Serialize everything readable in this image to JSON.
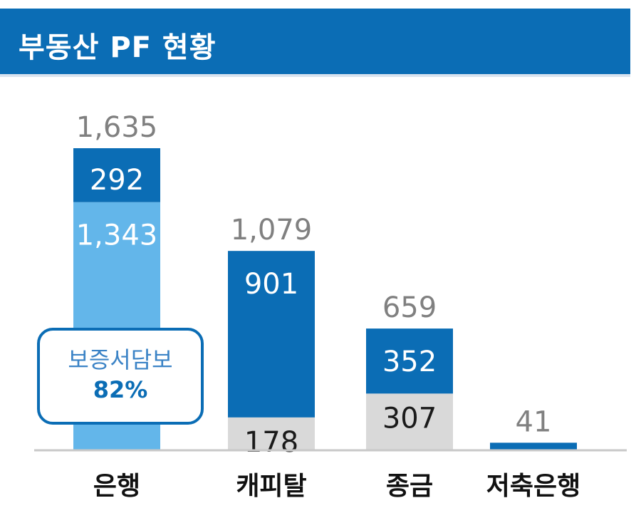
{
  "title": "부동산 PF 현황",
  "callout": {
    "label": "보증서담보",
    "value": "82%"
  },
  "colors": {
    "header": "#0b6db5",
    "dark_segment": "#0b6db5",
    "light_blue_segment": "#63b6ea",
    "gray_segment": "#d9d9d9",
    "total_label": "#808080"
  },
  "chart_data": {
    "type": "bar",
    "stacked": true,
    "title": "부동산 PF 현황",
    "categories": [
      "은행",
      "캐피탈",
      "종금",
      "저축은행"
    ],
    "totals": [
      "1,635",
      "1,079",
      "659",
      "41"
    ],
    "series": [
      {
        "values": [
          292,
          901,
          352,
          41
        ],
        "labels": [
          "292",
          "901",
          "352",
          ""
        ]
      },
      {
        "values": [
          1343,
          178,
          307,
          0
        ],
        "labels": [
          "1,343",
          "178",
          "307",
          ""
        ]
      }
    ],
    "grid": false,
    "legend": "none"
  }
}
